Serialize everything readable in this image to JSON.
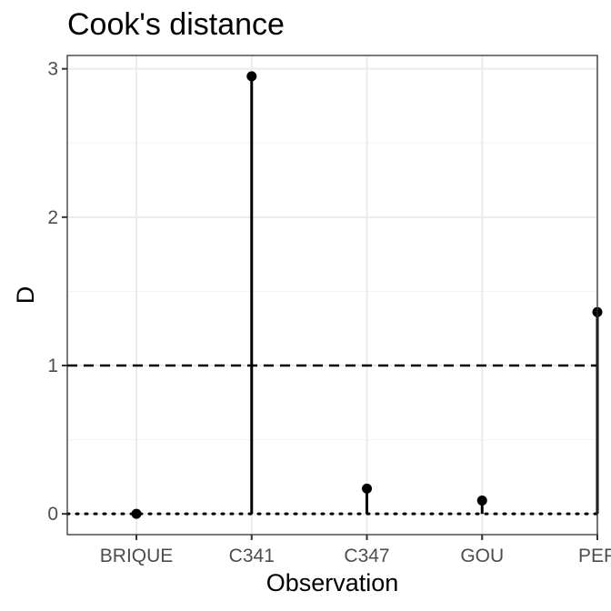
{
  "chart_data": {
    "type": "scatter",
    "title": "Cook's distance",
    "xlabel": "Observation",
    "ylabel": "D",
    "categories": [
      "BRIQUE",
      "C341",
      "C347",
      "GOU",
      "PEP"
    ],
    "values": [
      0.0,
      2.95,
      0.17,
      0.09,
      1.36
    ],
    "ylim": [
      -0.14,
      3.09
    ],
    "yticks": [
      "0",
      "1",
      "2",
      "3"
    ],
    "reference_lines": [
      {
        "y": 1,
        "style": "dashed"
      },
      {
        "y": 0,
        "style": "dotted"
      }
    ],
    "marks": "points with vertical stems from 0",
    "grid": true,
    "legend": "none"
  }
}
